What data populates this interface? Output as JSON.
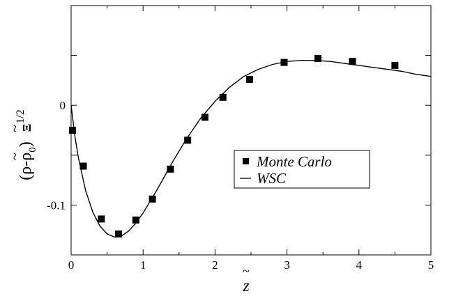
{
  "chart_data": {
    "type": "scatter",
    "xlim": [
      0,
      5
    ],
    "ylim": [
      -0.15,
      0.1
    ],
    "x_ticks": [
      0,
      1,
      2,
      3,
      4,
      5
    ],
    "x_tick_labels": [
      "0",
      "1",
      "2",
      "3",
      "4",
      "5"
    ],
    "y_ticks": [
      -0.1,
      0
    ],
    "y_tick_labels": [
      "-0.1",
      "0"
    ],
    "y_minor_ticks": [
      -0.15,
      -0.05,
      0.05,
      0.1
    ],
    "xlabel": "z",
    "ylabel": "(ρ-ρ",
    "ylabel_subscript": "0",
    "ylabel_factor": "Ξ",
    "ylabel_exponent": "1/2",
    "grid": false,
    "legend_placement": "center-right",
    "series": [
      {
        "name": "Monte Carlo",
        "marker": "square",
        "color": "#000000",
        "x": [
          0.02,
          0.17,
          0.42,
          0.66,
          0.9,
          1.13,
          1.38,
          1.62,
          1.86,
          2.11,
          2.48,
          2.96,
          3.43,
          3.91,
          4.5
        ],
        "y": [
          -0.025,
          -0.061,
          -0.114,
          -0.129,
          -0.115,
          -0.094,
          -0.064,
          -0.035,
          -0.012,
          0.008,
          0.026,
          0.043,
          0.047,
          0.044,
          0.04
        ]
      },
      {
        "name": "WSC",
        "marker": "line",
        "color": "#000000",
        "x": [
          0,
          0.05,
          0.1,
          0.2,
          0.3,
          0.4,
          0.5,
          0.6,
          0.7,
          0.8,
          0.9,
          1.0,
          1.2,
          1.4,
          1.6,
          1.8,
          2.0,
          2.2,
          2.4,
          2.6,
          2.8,
          3.0,
          3.2,
          3.4,
          3.6,
          3.8,
          4.0,
          4.2,
          4.4,
          4.6,
          4.8,
          5.0
        ],
        "y": [
          0.0,
          -0.03,
          -0.052,
          -0.085,
          -0.107,
          -0.121,
          -0.129,
          -0.132,
          -0.131,
          -0.126,
          -0.118,
          -0.108,
          -0.084,
          -0.058,
          -0.034,
          -0.013,
          0.004,
          0.018,
          0.029,
          0.036,
          0.041,
          0.044,
          0.045,
          0.045,
          0.044,
          0.042,
          0.04,
          0.038,
          0.036,
          0.034,
          0.031,
          0.029
        ]
      }
    ]
  }
}
